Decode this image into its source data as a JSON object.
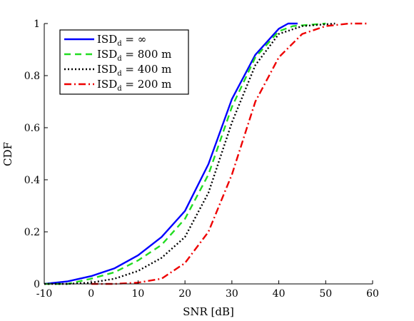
{
  "chart_data": {
    "type": "line",
    "xlabel": "SNR [dB]",
    "ylabel": "CDF",
    "xlim": [
      -10,
      60
    ],
    "ylim": [
      0,
      1
    ],
    "xticks": [
      -10,
      0,
      10,
      20,
      30,
      40,
      50,
      60
    ],
    "yticks": [
      0,
      0.2,
      0.4,
      0.6,
      0.8,
      1
    ],
    "ytick_labels": [
      "0",
      "0.2",
      "0.4",
      "0.6",
      "0.8",
      "1"
    ],
    "grid": false,
    "legend_position": "top-left",
    "series": [
      {
        "name": "ISD_d = ∞",
        "legend": {
          "prefix": "ISD",
          "sub": "d",
          "suffix": " = ∞"
        },
        "color": "#0000ff",
        "dash": "solid",
        "x": [
          -10,
          -5,
          0,
          5,
          10,
          15,
          20,
          25,
          30,
          35,
          40,
          42,
          44
        ],
        "y": [
          0.0,
          0.01,
          0.03,
          0.06,
          0.11,
          0.18,
          0.28,
          0.46,
          0.71,
          0.88,
          0.98,
          1.0,
          1.0
        ]
      },
      {
        "name": "ISD_d = 800 m",
        "legend": {
          "prefix": "ISD",
          "sub": "d",
          "suffix": " = 800 m"
        },
        "color": "#22dd22",
        "dash": "dashed",
        "x": [
          -10,
          -5,
          0,
          5,
          10,
          15,
          20,
          25,
          30,
          35,
          40,
          43,
          50
        ],
        "y": [
          0.0,
          0.0,
          0.02,
          0.045,
          0.09,
          0.15,
          0.25,
          0.42,
          0.68,
          0.87,
          0.97,
          0.99,
          1.0
        ]
      },
      {
        "name": "ISD_d = 400 m",
        "legend": {
          "prefix": "ISD",
          "sub": "d",
          "suffix": " = 400 m"
        },
        "color": "#000000",
        "dash": "dotted",
        "x": [
          -10,
          -5,
          0,
          5,
          10,
          15,
          20,
          25,
          30,
          35,
          40,
          45,
          52
        ],
        "y": [
          0.0,
          0.0,
          0.005,
          0.02,
          0.05,
          0.1,
          0.18,
          0.35,
          0.62,
          0.84,
          0.96,
          0.99,
          1.0
        ]
      },
      {
        "name": "ISD_d = 200 m",
        "legend": {
          "prefix": "ISD",
          "sub": "d",
          "suffix": " = 200 m"
        },
        "color": "#ee0000",
        "dash": "dashdot",
        "x": [
          0,
          5,
          10,
          15,
          20,
          25,
          30,
          35,
          40,
          45,
          50,
          55,
          59
        ],
        "y": [
          0.0,
          0.0,
          0.005,
          0.02,
          0.08,
          0.2,
          0.42,
          0.7,
          0.87,
          0.96,
          0.99,
          1.0,
          1.0
        ]
      }
    ]
  }
}
